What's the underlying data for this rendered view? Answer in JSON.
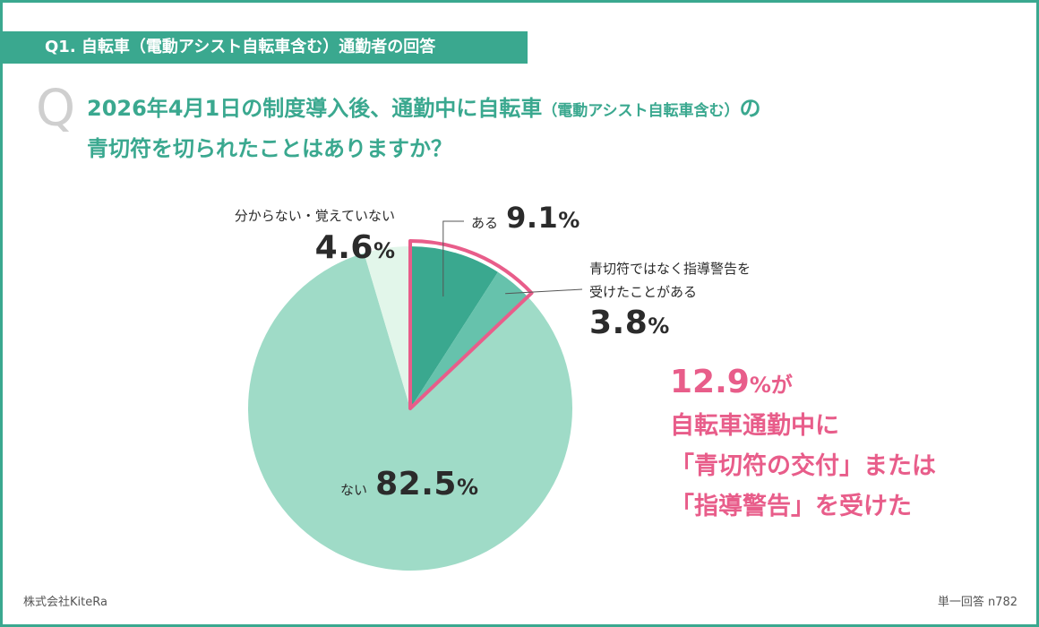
{
  "header": {
    "title": "Q1. 自転車（電動アシスト自転車含む）通勤者の回答"
  },
  "question": {
    "mark": "Q",
    "line1_main": "2026年4月1日の制度導入後、通勤中に自転車",
    "line1_small": "（電動アシスト自転車含む）",
    "line1_end": "の",
    "line2": "青切符を切られたことはありますか？"
  },
  "labels": {
    "aru": {
      "text": "ある",
      "value": "9.1",
      "unit": "%"
    },
    "warning_line1": "青切符ではなく指導警告を",
    "warning_line2": "受けたことがある",
    "warning_value": "3.8",
    "warning_unit": "%",
    "unknown_text": "分からない・覚えていない",
    "unknown_value": "4.6",
    "unknown_unit": "%",
    "nai": {
      "text": "ない",
      "value": "82.5",
      "unit": "%"
    }
  },
  "highlight": {
    "number": "12.9",
    "suffix": "%が",
    "line2": "自転車通勤中に",
    "line3": "「青切符の交付」または",
    "line4": "「指導警告」を受けた"
  },
  "footer": {
    "company": "株式会社KiteRa",
    "note": "単一回答 n782"
  },
  "colors": {
    "brand": "#3aa88f",
    "aru": "#3aa88f",
    "warning": "#66c2ac",
    "nai": "#9fdbc7",
    "unknown": "#e2f6ea",
    "highlight": "#e85d8a"
  },
  "chart_data": {
    "type": "pie",
    "title": "2026年4月1日の制度導入後、通勤中に自転車（電動アシスト自転車含む）の青切符を切られたことはありますか？",
    "categories": [
      "ある",
      "青切符ではなく指導警告を受けたことがある",
      "ない",
      "分からない・覚えていない"
    ],
    "values": [
      9.1,
      3.8,
      82.5,
      4.6
    ],
    "unit": "%",
    "highlighted_categories": [
      "ある",
      "青切符ではなく指導警告を受けたことがある"
    ],
    "highlighted_total": 12.9
  }
}
